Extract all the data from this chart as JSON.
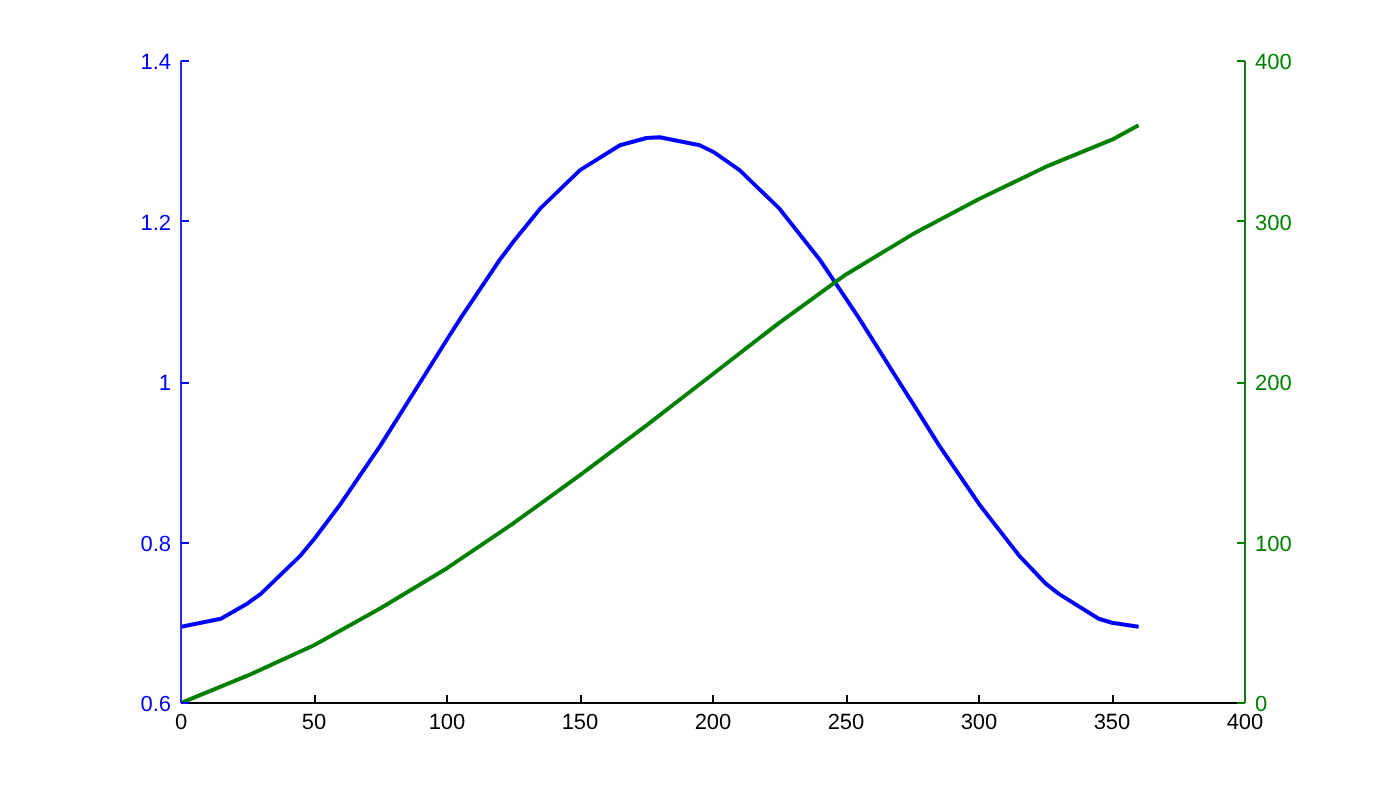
{
  "chart_data": {
    "type": "line",
    "x": [
      0,
      15,
      25,
      30,
      45,
      50,
      60,
      75,
      90,
      100,
      105,
      120,
      125,
      135,
      150,
      165,
      175,
      180,
      195,
      200,
      210,
      225,
      240,
      250,
      255,
      270,
      275,
      285,
      300,
      315,
      325,
      330,
      345,
      350,
      360
    ],
    "series": [
      {
        "color": "#0000ff",
        "values": [
          0.695,
          0.705,
          0.724,
          0.736,
          0.784,
          0.804,
          0.848,
          0.921,
          1.0,
          1.053,
          1.079,
          1.153,
          1.175,
          1.216,
          1.264,
          1.295,
          1.304,
          1.305,
          1.295,
          1.287,
          1.264,
          1.216,
          1.153,
          1.104,
          1.079,
          1.0,
          0.974,
          0.921,
          0.848,
          0.784,
          0.749,
          0.736,
          0.705,
          0.7,
          0.695
        ]
      },
      {
        "color": "#008000",
        "axis": "y2",
        "x": [
          0,
          25,
          50,
          75,
          100,
          125,
          150,
          175,
          200,
          225,
          250,
          275,
          300,
          325,
          350,
          360
        ],
        "values": [
          0,
          17,
          36,
          59,
          84,
          112,
          142,
          173,
          205,
          237,
          267,
          292,
          314,
          334,
          351,
          360
        ]
      }
    ],
    "xlim": [
      0,
      400
    ],
    "xticks": [
      0,
      50,
      100,
      150,
      200,
      250,
      300,
      350,
      400
    ],
    "ylim": [
      0.6,
      1.4
    ],
    "yticks": [
      0.6,
      0.8,
      1,
      1.2,
      1.4
    ],
    "y2lim": [
      0,
      400
    ],
    "y2ticks": [
      0,
      100,
      200,
      300,
      400
    ],
    "grid": false
  }
}
